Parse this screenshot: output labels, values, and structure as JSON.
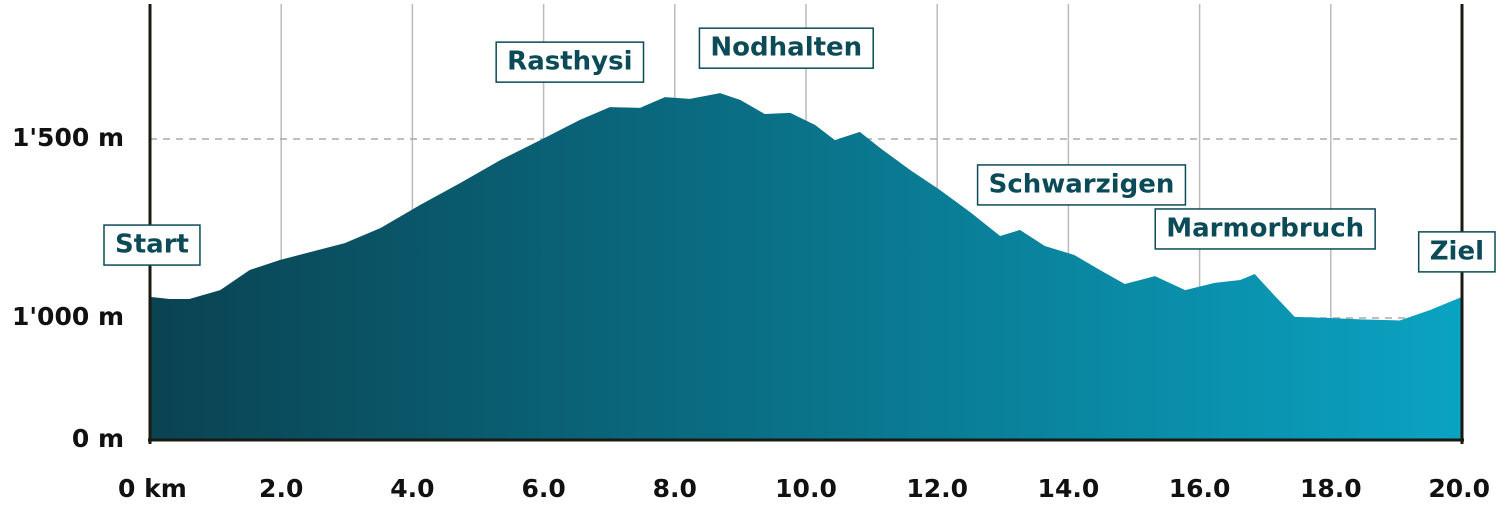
{
  "chart_data": {
    "type": "area",
    "x": [
      0,
      0.3,
      0.6,
      1.07,
      1.52,
      1.98,
      2.44,
      2.97,
      3.51,
      4.12,
      4.73,
      5.34,
      5.95,
      6.55,
      7.01,
      7.47,
      7.85,
      8.23,
      8.69,
      9.0,
      9.37,
      9.76,
      10.14,
      10.44,
      10.82,
      11.13,
      11.59,
      12.04,
      12.5,
      12.96,
      13.26,
      13.64,
      14.09,
      14.48,
      14.86,
      15.32,
      15.78,
      16.23,
      16.62,
      16.84,
      17.15,
      17.45,
      17.99,
      18.45,
      19.05,
      19.51,
      20.0
    ],
    "values": [
      1059,
      1053,
      1053,
      1078,
      1134,
      1162,
      1184,
      1209,
      1251,
      1316,
      1377,
      1441,
      1497,
      1553,
      1589,
      1587,
      1617,
      1612,
      1628,
      1609,
      1570,
      1573,
      1539,
      1497,
      1520,
      1475,
      1413,
      1358,
      1296,
      1229,
      1246,
      1201,
      1176,
      1134,
      1095,
      1117,
      1078,
      1098,
      1106,
      1123,
      1061,
      1003,
      1000,
      989,
      980,
      1022,
      1059
    ],
    "colors": [
      "#0a4352",
      "#0aa3c2"
    ],
    "xlim": [
      0,
      20
    ],
    "xticks": [
      {
        "value": 0,
        "label": "0 km"
      },
      {
        "value": 2,
        "label": "2.0"
      },
      {
        "value": 4,
        "label": "4.0"
      },
      {
        "value": 6,
        "label": "6.0"
      },
      {
        "value": 8,
        "label": "8.0"
      },
      {
        "value": 10,
        "label": "10.0"
      },
      {
        "value": 12,
        "label": "12.0"
      },
      {
        "value": 14,
        "label": "14.0"
      },
      {
        "value": 16,
        "label": "16.0"
      },
      {
        "value": 18,
        "label": "18.0"
      },
      {
        "value": 20,
        "label": "20.0"
      }
    ],
    "ylim": [
      0,
      1880
    ],
    "yticks": [
      {
        "value": 0,
        "label": "0 m"
      },
      {
        "value": 1000,
        "label": "1'000 m"
      },
      {
        "value": 1500,
        "label": "1'500 m"
      }
    ],
    "grid": true,
    "annotations": [
      {
        "text": "Start",
        "x": 0
      },
      {
        "text": "Rasthysi",
        "x": 6.4
      },
      {
        "text": "Nodhalten",
        "x": 9.7
      },
      {
        "text": "Schwarzigen",
        "x": 14.2
      },
      {
        "text": "Marmorbruch",
        "x": 17.0
      },
      {
        "text": "Ziel",
        "x": 20.0
      }
    ]
  }
}
